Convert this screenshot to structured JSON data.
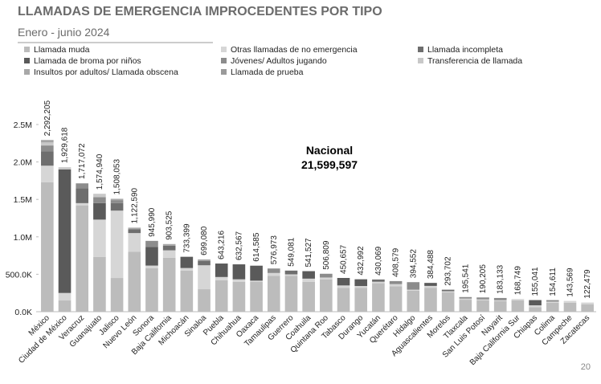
{
  "chart_data": {
    "type": "stacked_bar",
    "title": "LLAMADAS DE EMERGENCIA IMPROCEDENTES POR TIPO",
    "subtitle": "Enero - junio 2024",
    "annotation": {
      "title": "Nacional",
      "value_label": "21,599,597"
    },
    "page_number": "20",
    "categories": [
      "México",
      "Ciudad de México",
      "Veracruz",
      "Guanajuato",
      "Jalisco",
      "Nuevo León",
      "Sonora",
      "Baja California",
      "Michoacán",
      "Sinaloa",
      "Puebla",
      "Chihuahua",
      "Oaxaca",
      "Tamaulipas",
      "Guerrero",
      "Coahuila",
      "Quintana Roo",
      "Tabasco",
      "Durango",
      "Yucatán",
      "Querétaro",
      "Hidalgo",
      "Aguascalientes",
      "Morelos",
      "Tlaxcala",
      "San Luis Potosí",
      "Nayarit",
      "Baja California Sur",
      "Chiapas",
      "Colima",
      "Campeche",
      "Zacatecas"
    ],
    "totals": [
      2292205,
      1929618,
      1717072,
      1574940,
      1508053,
      1122590,
      945990,
      903525,
      733399,
      699080,
      643216,
      632567,
      614585,
      576973,
      549081,
      541527,
      506809,
      450657,
      432992,
      430069,
      408579,
      394552,
      384488,
      293702,
      195541,
      190205,
      183133,
      168749,
      155041,
      154611,
      143569,
      122479
    ],
    "total_labels": [
      "2,292,205",
      "1,929,618",
      "1,717,072",
      "1,574,940",
      "1,508,053",
      "1,122,590",
      "945,990",
      "903,525",
      "733,399",
      "699,080",
      "643,216",
      "632,567",
      "614,585",
      "576,973",
      "549,081",
      "541,527",
      "506,809",
      "450,657",
      "432,992",
      "430,069",
      "408,579",
      "394,552",
      "384,488",
      "293,702",
      "195,541",
      "190,205",
      "183,133",
      "168,749",
      "155,041",
      "154,611",
      "143,569",
      "122,479"
    ],
    "series": [
      {
        "name": "Llamada muda",
        "color": "#bcbcbc",
        "values": [
          1730000,
          150000,
          1420000,
          730000,
          450000,
          800000,
          580000,
          720000,
          550000,
          300000,
          420000,
          400000,
          400000,
          480000,
          480000,
          400000,
          430000,
          320000,
          320000,
          380000,
          340000,
          280000,
          320000,
          260000,
          160000,
          150000,
          140000,
          150000,
          60000,
          120000,
          120000,
          100000
        ]
      },
      {
        "name": "Otras llamadas de no emergencia",
        "color": "#d6d6d6",
        "values": [
          220000,
          100000,
          30000,
          500000,
          900000,
          250000,
          35990,
          100000,
          33399,
          320000,
          43216,
          32567,
          14585,
          36973,
          19081,
          41527,
          26809,
          30657,
          22992,
          20069,
          28579,
          14552,
          24488,
          13702,
          15541,
          15205,
          13133,
          18749,
          25041,
          14611,
          23569,
          22479
        ]
      },
      {
        "name": "Llamada incompleta",
        "color": "#6e6e6e",
        "values": [
          190000,
          0,
          200000,
          0,
          100000,
          50000,
          0,
          60000,
          0,
          60000,
          0,
          0,
          0,
          0,
          50000,
          0,
          0,
          0,
          0,
          30000,
          0,
          0,
          0,
          20000,
          0,
          0,
          0,
          0,
          0,
          0,
          0,
          0
        ]
      },
      {
        "name": "Llamada de broma por niños",
        "color": "#5a5a5a",
        "values": [
          0,
          1650000,
          0,
          220000,
          0,
          0,
          250000,
          0,
          150000,
          0,
          180000,
          200000,
          200000,
          0,
          0,
          100000,
          0,
          100000,
          90000,
          0,
          0,
          0,
          40000,
          0,
          0,
          0,
          0,
          0,
          70000,
          0,
          0,
          0
        ]
      },
      {
        "name": "Jóvenes/ Adultos jugando",
        "color": "#8c8c8c",
        "values": [
          80000,
          0,
          60000,
          80000,
          40000,
          0,
          80000,
          0,
          0,
          0,
          0,
          0,
          0,
          60000,
          0,
          0,
          50000,
          0,
          0,
          0,
          40000,
          100000,
          0,
          0,
          20000,
          25000,
          30000,
          0,
          0,
          20000,
          0,
          0
        ]
      },
      {
        "name": "Transferencia de llamada",
        "color": "#c8c8c8",
        "values": [
          40000,
          29618,
          0,
          44940,
          0,
          0,
          0,
          0,
          0,
          0,
          0,
          0,
          0,
          0,
          0,
          0,
          0,
          0,
          0,
          0,
          0,
          0,
          0,
          0,
          0,
          0,
          0,
          0,
          0,
          0,
          0,
          0
        ]
      },
      {
        "name": "Insultos por adultos/ Llamada obscena",
        "color": "#a8a8a8",
        "values": [
          20000,
          0,
          7072,
          0,
          18053,
          22590,
          0,
          23525,
          0,
          19080,
          0,
          0,
          0,
          0,
          0,
          0,
          0,
          0,
          0,
          0,
          0,
          0,
          0,
          0,
          0,
          0,
          0,
          0,
          0,
          0,
          0,
          0
        ]
      },
      {
        "name": "Llamada de prueba",
        "color": "#9a9a9a",
        "values": [
          12205,
          0,
          0,
          0,
          0,
          0,
          0,
          0,
          0,
          0,
          0,
          0,
          0,
          0,
          0,
          0,
          0,
          0,
          0,
          0,
          0,
          0,
          0,
          0,
          0,
          0,
          0,
          0,
          0,
          0,
          0,
          0
        ]
      }
    ],
    "ylim": [
      0,
      2500000
    ],
    "yticks": [
      {
        "value": 0,
        "label": "0.0K"
      },
      {
        "value": 500000,
        "label": "500.0K"
      },
      {
        "value": 1000000,
        "label": "1.0M"
      },
      {
        "value": 1500000,
        "label": "1.5M"
      },
      {
        "value": 2000000,
        "label": "2.0M"
      },
      {
        "value": 2500000,
        "label": "2.5M"
      }
    ],
    "grid": false
  }
}
